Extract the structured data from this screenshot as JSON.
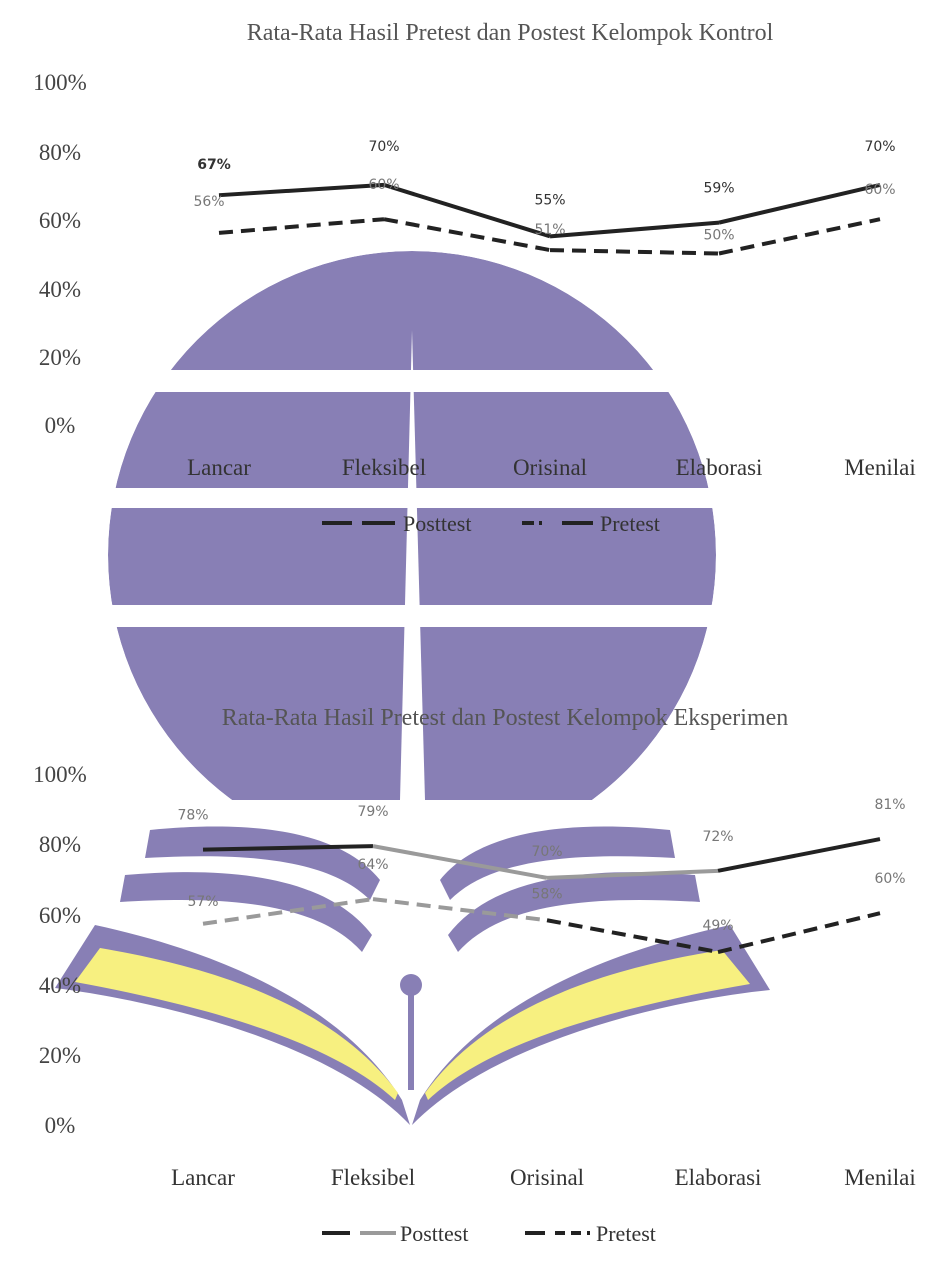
{
  "colors": {
    "emblem_purple": "#8279b1",
    "emblem_yellow": "#f7f07a",
    "line_dark": "#222222",
    "line_gray": "#9a9a9a"
  },
  "watermark": {
    "icon": "open-book-emblem-icon"
  },
  "chart_data": [
    {
      "type": "line",
      "title": "Rata-Rata Hasil Pretest dan Postest Kelompok Kontrol",
      "categories": [
        "Lancar",
        "Fleksibel",
        "Orisinal",
        "Elaborasi",
        "Menilai"
      ],
      "series": [
        {
          "name": "Posttest",
          "values": [
            67,
            70,
            55,
            59,
            70
          ],
          "labels": [
            "67%",
            "70%",
            "55%",
            "59%",
            "70%"
          ]
        },
        {
          "name": "Pretest",
          "values": [
            56,
            60,
            51,
            50,
            60
          ],
          "labels": [
            "56%",
            "60%",
            "51%",
            "50%",
            "60%"
          ]
        }
      ],
      "yticks": [
        "100%",
        "80%",
        "60%",
        "40%",
        "20%",
        "0%"
      ],
      "ylim": [
        0,
        100
      ],
      "legend_position": "bottom",
      "grid": false
    },
    {
      "type": "line",
      "title": "Rata-Rata Hasil Pretest dan Postest Kelompok Eksperimen",
      "categories": [
        "Lancar",
        "Fleksibel",
        "Orisinal",
        "Elaborasi",
        "Menilai"
      ],
      "series": [
        {
          "name": "Posttest",
          "values": [
            78,
            79,
            70,
            72,
            81
          ],
          "labels": [
            "78%",
            "79%",
            "70%",
            "72%",
            "81%"
          ]
        },
        {
          "name": "Pretest",
          "values": [
            57,
            64,
            58,
            49,
            60
          ],
          "labels": [
            "57%",
            "64%",
            "58%",
            "49%",
            "60%"
          ]
        }
      ],
      "yticks": [
        "100%",
        "80%",
        "60%",
        "40%",
        "20%",
        "0%"
      ],
      "ylim": [
        0,
        100
      ],
      "legend_position": "bottom",
      "grid": false
    }
  ]
}
